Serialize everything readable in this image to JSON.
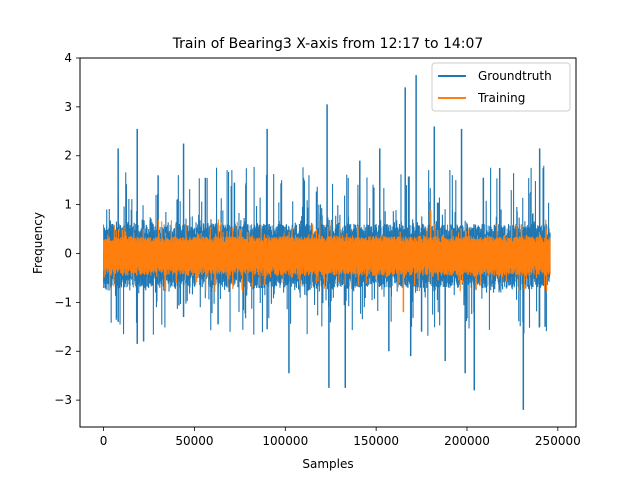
{
  "chart_data": {
    "type": "line",
    "title": "Train of Bearing3 X-axis from 12:17 to 14:07",
    "xlabel": "Samples",
    "ylabel": "Frequency",
    "xlim": [
      -13000,
      260000
    ],
    "ylim": [
      -3.55,
      4.0
    ],
    "xticks": [
      0,
      50000,
      100000,
      150000,
      200000,
      250000
    ],
    "xtick_labels": [
      "0",
      "50000",
      "100000",
      "150000",
      "200000",
      "250000"
    ],
    "yticks": [
      -3,
      -2,
      -1,
      0,
      1,
      2,
      3,
      4
    ],
    "ytick_labels": [
      "−3",
      "−2",
      "−1",
      "0",
      "1",
      "2",
      "3",
      "4"
    ],
    "grid": false,
    "legend": {
      "position": "top-right",
      "entries": [
        "Groundtruth",
        "Training"
      ]
    },
    "series": [
      {
        "name": "Groundtruth",
        "color": "#1f77b4",
        "x_range": [
          0,
          246000
        ],
        "band": [
          -0.7,
          0.6
        ],
        "extremes": [
          {
            "x": 8000,
            "y": 2.15
          },
          {
            "x": 8000,
            "y": -1.4
          },
          {
            "x": 18500,
            "y": 2.55
          },
          {
            "x": 18500,
            "y": -1.85
          },
          {
            "x": 22000,
            "y": -1.8
          },
          {
            "x": 30000,
            "y": 1.6
          },
          {
            "x": 44000,
            "y": 2.25
          },
          {
            "x": 44000,
            "y": -1.3
          },
          {
            "x": 56000,
            "y": 1.55
          },
          {
            "x": 63000,
            "y": -1.45
          },
          {
            "x": 72000,
            "y": 1.45
          },
          {
            "x": 90000,
            "y": 2.55
          },
          {
            "x": 90000,
            "y": -1.55
          },
          {
            "x": 102000,
            "y": -2.45
          },
          {
            "x": 110000,
            "y": 1.55
          },
          {
            "x": 123000,
            "y": 3.05
          },
          {
            "x": 124000,
            "y": -2.75
          },
          {
            "x": 133000,
            "y": -2.75
          },
          {
            "x": 141000,
            "y": 1.9
          },
          {
            "x": 152000,
            "y": 2.15
          },
          {
            "x": 157000,
            "y": -2.0
          },
          {
            "x": 166000,
            "y": 3.4
          },
          {
            "x": 169000,
            "y": -2.1
          },
          {
            "x": 172000,
            "y": 3.65
          },
          {
            "x": 175000,
            "y": -1.6
          },
          {
            "x": 182000,
            "y": 2.6
          },
          {
            "x": 188000,
            "y": -2.2
          },
          {
            "x": 197000,
            "y": 2.55
          },
          {
            "x": 199000,
            "y": -2.45
          },
          {
            "x": 204000,
            "y": -2.8
          },
          {
            "x": 209000,
            "y": 1.55
          },
          {
            "x": 218000,
            "y": 1.75
          },
          {
            "x": 231000,
            "y": -3.2
          },
          {
            "x": 240000,
            "y": 2.15
          },
          {
            "x": 243000,
            "y": -1.5
          }
        ]
      },
      {
        "name": "Training",
        "color": "#ff7f0e",
        "x_range": [
          0,
          246000
        ],
        "band": [
          -0.45,
          0.35
        ],
        "extremes": [
          {
            "x": 12000,
            "y": 0.45
          },
          {
            "x": 40000,
            "y": -0.6
          },
          {
            "x": 75000,
            "y": 0.5
          },
          {
            "x": 108000,
            "y": -0.65
          },
          {
            "x": 140000,
            "y": 0.55
          },
          {
            "x": 165000,
            "y": -1.2
          },
          {
            "x": 180000,
            "y": 0.9
          },
          {
            "x": 205000,
            "y": -0.75
          },
          {
            "x": 230000,
            "y": 0.6
          }
        ]
      }
    ]
  }
}
